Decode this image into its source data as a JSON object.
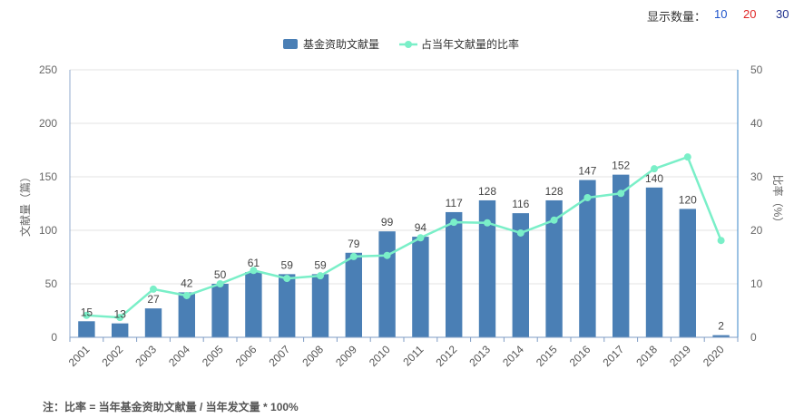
{
  "display_count": {
    "label": "显示数量：",
    "options": [
      {
        "label": "10",
        "color": "#1f55cc"
      },
      {
        "label": "20",
        "color": "#e02626"
      },
      {
        "label": "30",
        "color": "#1c2e8c"
      }
    ]
  },
  "chart_data": {
    "type": "bar",
    "categories": [
      "2001",
      "2002",
      "2003",
      "2004",
      "2005",
      "2006",
      "2007",
      "2008",
      "2009",
      "2010",
      "2011",
      "2012",
      "2013",
      "2014",
      "2015",
      "2016",
      "2017",
      "2018",
      "2019",
      "2020"
    ],
    "series": [
      {
        "name": "基金资助文献量",
        "type": "bar",
        "axis": "left",
        "color": "#4a7fb5",
        "values": [
          15,
          13,
          27,
          42,
          50,
          61,
          59,
          59,
          79,
          99,
          94,
          117,
          128,
          116,
          128,
          147,
          152,
          140,
          120,
          2
        ]
      },
      {
        "name": "占当年文献量的比率",
        "type": "line",
        "axis": "right",
        "color": "#7aefc8",
        "values": [
          4.1,
          3.7,
          9.0,
          7.8,
          10.0,
          12.5,
          11.0,
          11.5,
          15.1,
          15.3,
          18.6,
          21.5,
          21.4,
          19.5,
          21.9,
          26.1,
          26.9,
          31.5,
          33.7,
          18.1
        ]
      }
    ],
    "ylabel": "文献量（篇）",
    "ylabel_right": "比率（%）",
    "ylim": [
      0,
      250
    ],
    "yticks": [
      0,
      50,
      100,
      150,
      200,
      250
    ],
    "ylim_right": [
      0,
      50
    ],
    "yticks_right": [
      0,
      10,
      20,
      30,
      40,
      50
    ],
    "grid": true,
    "legend": "top-center",
    "data_labels": true
  },
  "footnote": "注：比率 = 当年基金资助文献量 / 当年发文量 * 100%"
}
